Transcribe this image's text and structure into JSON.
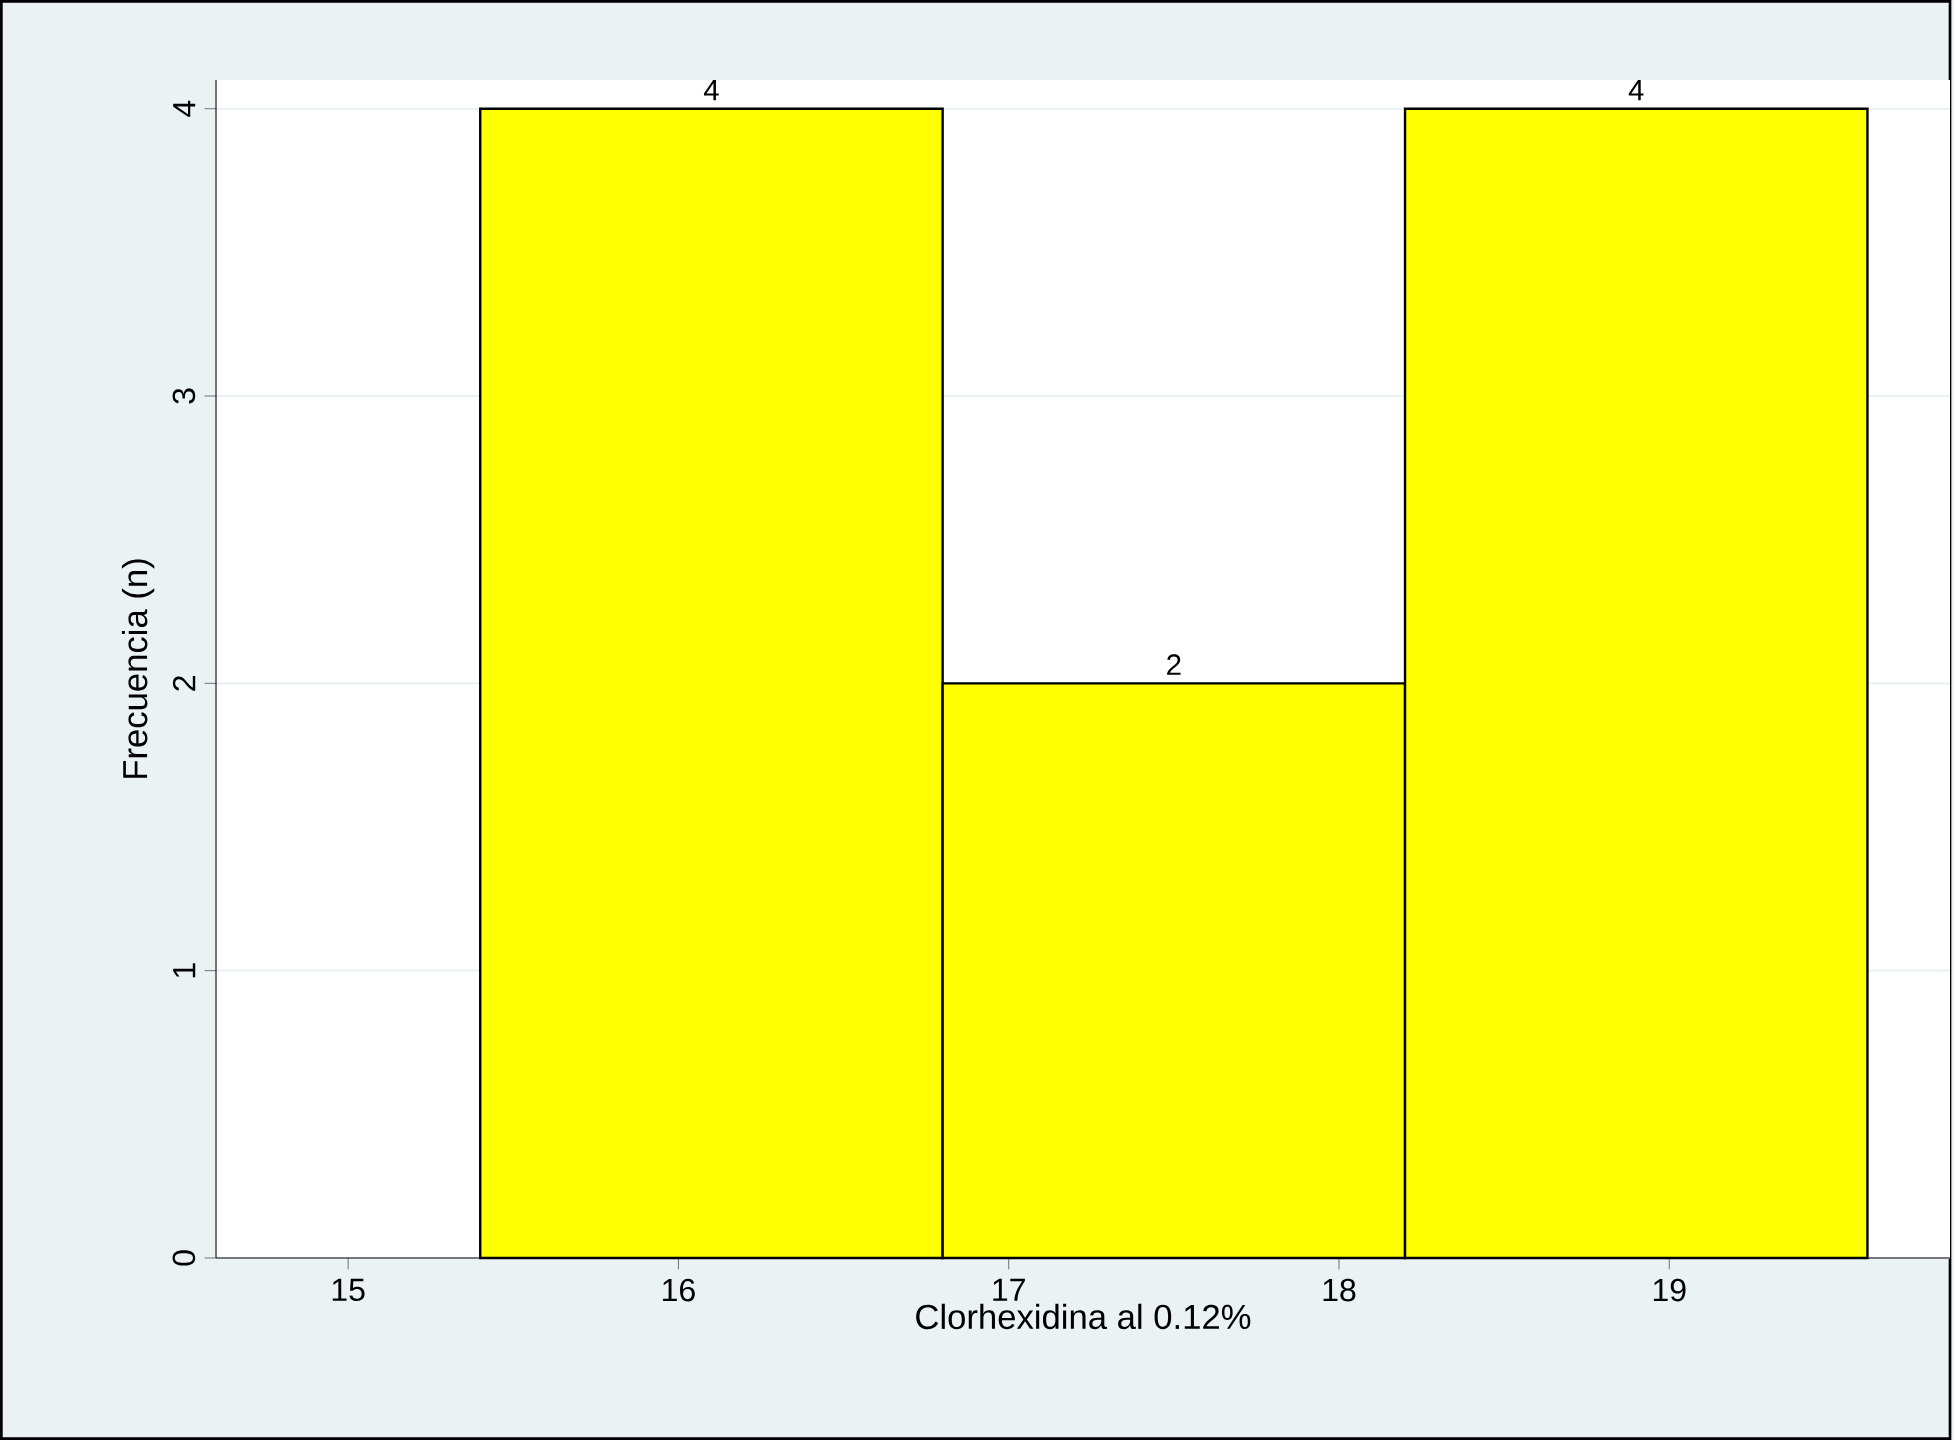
{
  "chart_data": {
    "type": "histogram",
    "xlabel": "Clorhexidina al 0.12%",
    "ylabel": "Frecuencia (n)",
    "bins": [
      15.4,
      16.8,
      18.2,
      19.6
    ],
    "values": [
      4,
      2,
      4
    ],
    "color": "#ffff00",
    "xlim": [
      14.6,
      19.85
    ],
    "ylim": [
      0,
      4.1
    ],
    "xticks": [
      15,
      16,
      17,
      18,
      19
    ],
    "yticks": [
      0,
      1,
      2,
      3,
      4
    ],
    "grid": "y",
    "data_labels": true
  }
}
